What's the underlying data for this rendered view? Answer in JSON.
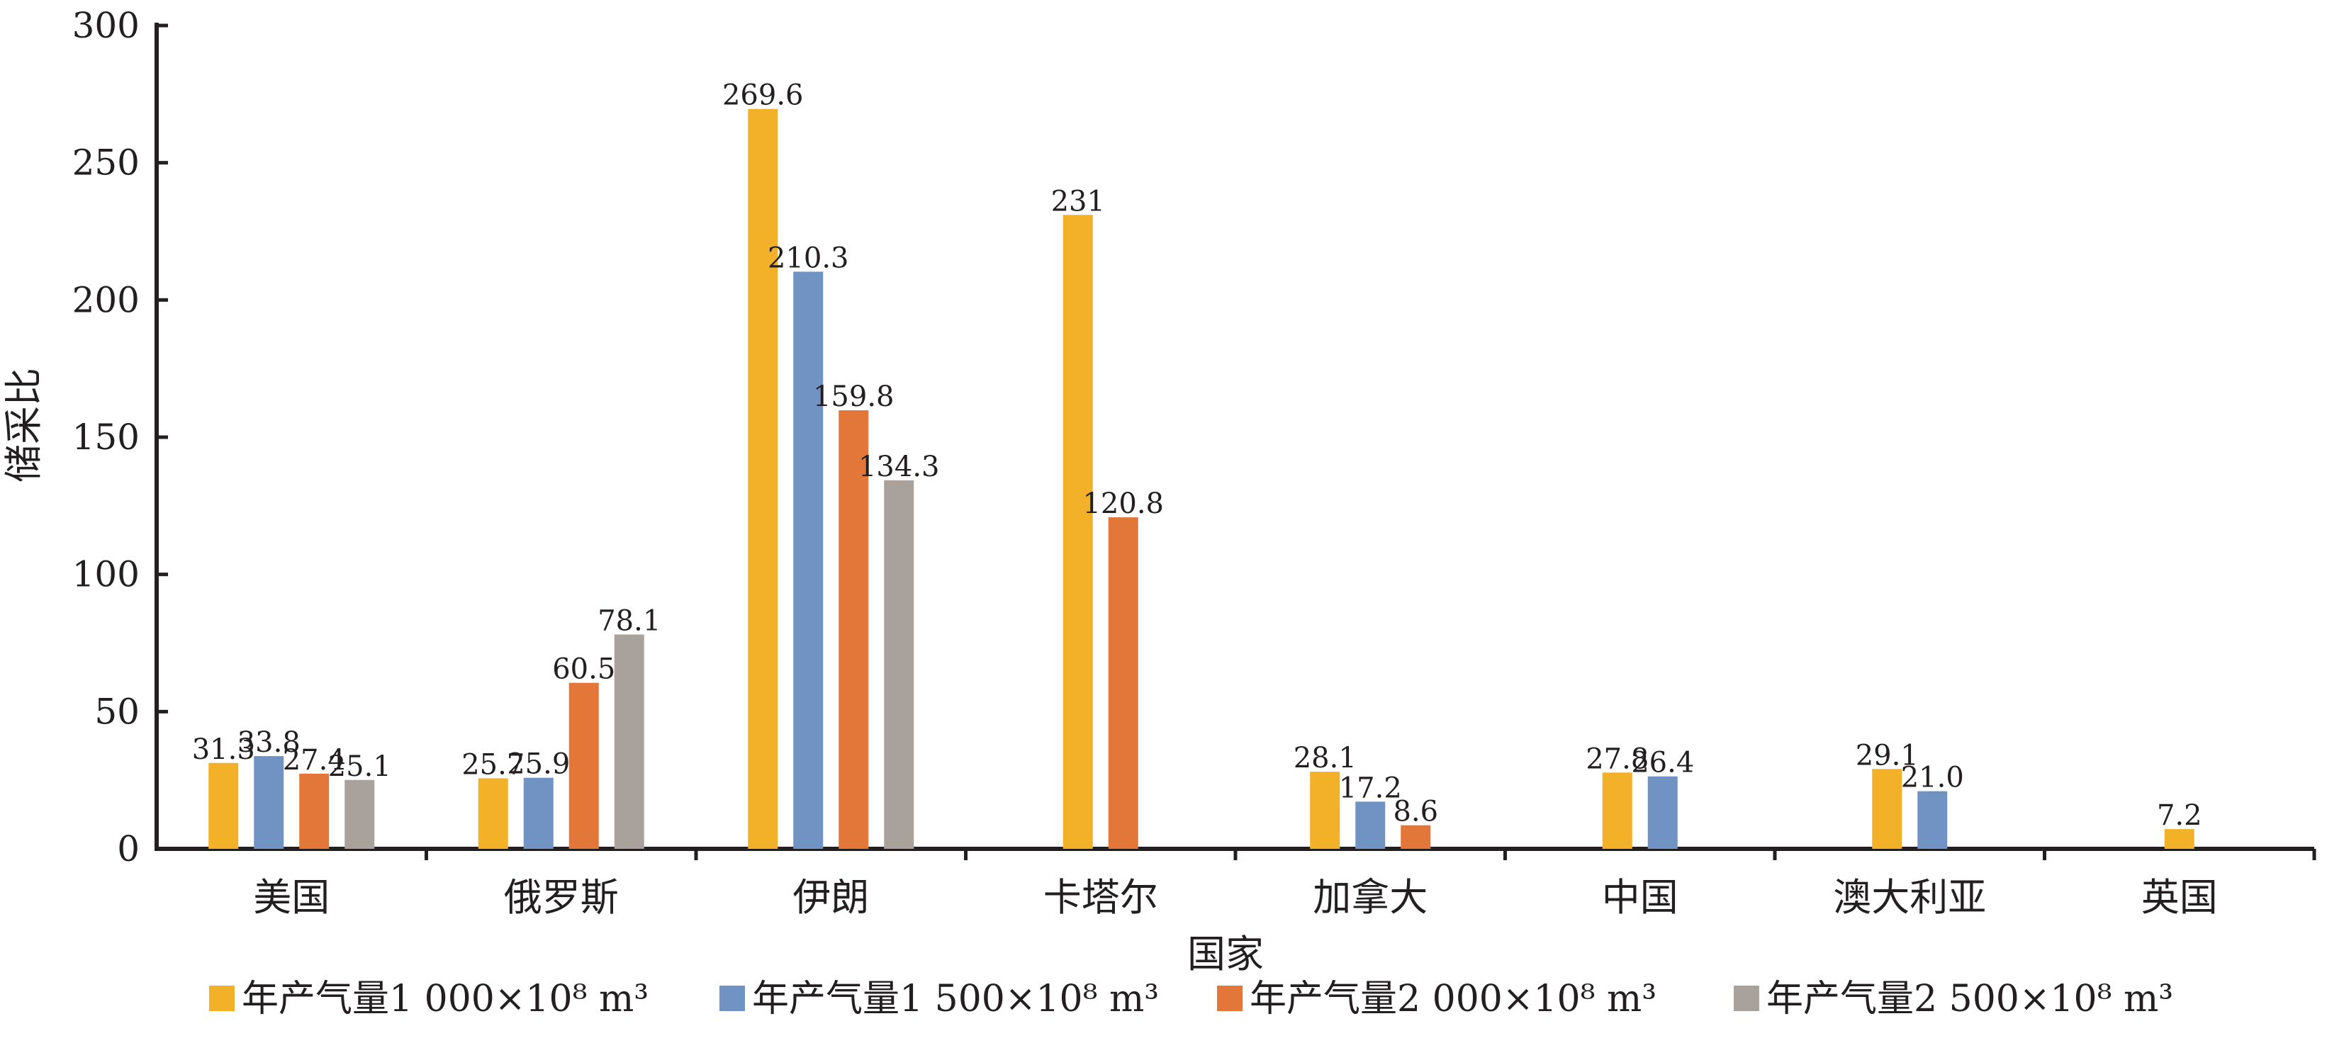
{
  "chart_data": {
    "type": "bar",
    "ylabel": "储采比",
    "xlabel": "国家",
    "ylim": [
      0,
      300
    ],
    "yticks": [
      0,
      50,
      100,
      150,
      200,
      250,
      300
    ],
    "categories": [
      "美国",
      "俄罗斯",
      "伊朗",
      "卡塔尔",
      "加拿大",
      "中国",
      "澳大利亚",
      "英国"
    ],
    "series": [
      {
        "name": "年产气量1 000×10⁸ m³",
        "color": "#f2b129",
        "values": [
          31.3,
          25.7,
          269.6,
          231,
          28.1,
          27.8,
          29.1,
          7.2
        ],
        "labels": [
          "31.3",
          "25.7",
          "269.6",
          "231",
          "28.1",
          "27.8",
          "29.1",
          "7.2"
        ]
      },
      {
        "name": "年产气量1 500×10⁸ m³",
        "color": "#7193c3",
        "values": [
          33.8,
          25.9,
          210.3,
          null,
          17.2,
          26.4,
          21.0,
          null
        ],
        "labels": [
          "33.8",
          "25.9",
          "210.3",
          null,
          "17.2",
          "26.4",
          "21.0",
          null
        ]
      },
      {
        "name": "年产气量2 000×10⁸ m³",
        "color": "#e27739",
        "values": [
          27.4,
          60.5,
          159.8,
          120.8,
          8.6,
          null,
          null,
          null
        ],
        "labels": [
          "27.4",
          "60.5",
          "159.8",
          "120.8",
          "8.6",
          null,
          null,
          null
        ]
      },
      {
        "name": "年产气量2 500×10⁸ m³",
        "color": "#a9a29c",
        "values": [
          25.1,
          78.1,
          134.3,
          null,
          null,
          null,
          null,
          null
        ],
        "labels": [
          "25.1",
          "78.1",
          "134.3",
          null,
          null,
          null,
          null,
          null
        ]
      }
    ],
    "legend_position": "bottom",
    "grid": false
  }
}
